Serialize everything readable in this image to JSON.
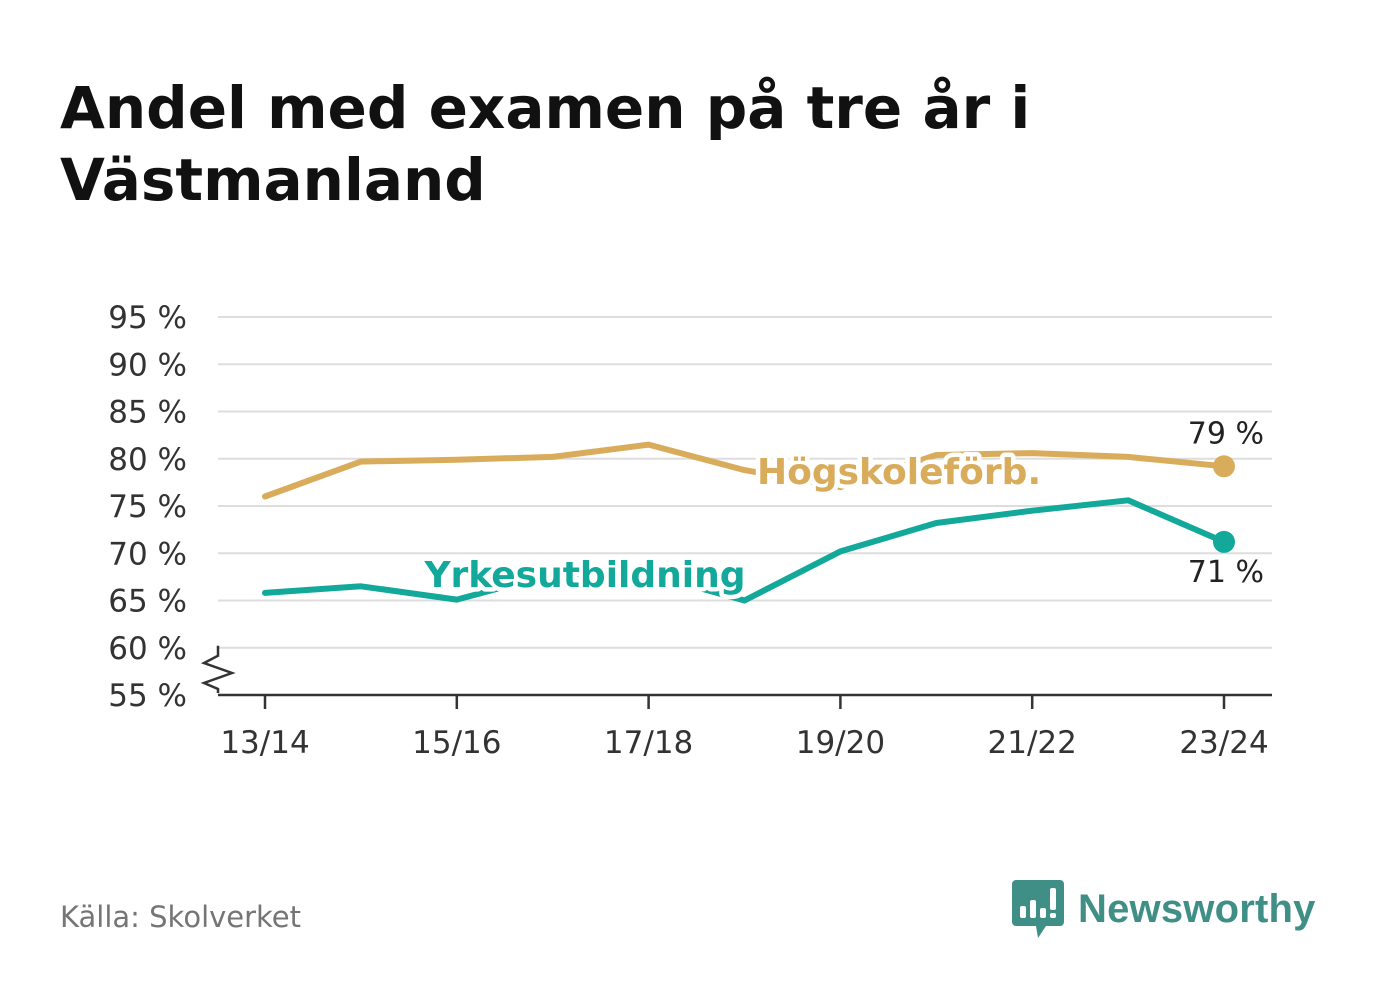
{
  "title": "Andel med examen på tre år i Västmanland",
  "source": "Källa: Skolverket",
  "brand": {
    "name": "Newsworthy",
    "icon": "bar-chart-speech-bubble-icon",
    "color": "#3f8f86"
  },
  "chart_data": {
    "type": "line",
    "title": "Andel med examen på tre år i Västmanland",
    "xlabel": "",
    "ylabel": "",
    "x": [
      "13/14",
      "14/15",
      "15/16",
      "16/17",
      "17/18",
      "18/19",
      "19/20",
      "20/21",
      "21/22",
      "22/23",
      "23/24"
    ],
    "x_tick_labels": [
      "13/14",
      "15/16",
      "17/18",
      "19/20",
      "21/22",
      "23/24"
    ],
    "ylim": [
      55,
      95
    ],
    "y_ticks": [
      55,
      60,
      65,
      70,
      75,
      80,
      85,
      90,
      95
    ],
    "y_tick_labels": [
      "55 %",
      "60 %",
      "65 %",
      "70 %",
      "75 %",
      "80 %",
      "85 %",
      "90 %",
      "95 %"
    ],
    "y_axis_break": true,
    "grid": true,
    "series": [
      {
        "name": "Högskoleförb.",
        "color": "#d9ac5c",
        "values": [
          76.0,
          79.7,
          79.9,
          80.2,
          81.5,
          78.8,
          77.0,
          80.4,
          80.6,
          80.2,
          79.2
        ],
        "end_label": "79 %"
      },
      {
        "name": "Yrkesutbildning",
        "color": "#12a89a",
        "values": [
          65.8,
          66.5,
          65.1,
          67.8,
          67.8,
          65.0,
          70.2,
          73.2,
          74.5,
          75.6,
          71.2
        ],
        "end_label": "71 %"
      }
    ]
  }
}
